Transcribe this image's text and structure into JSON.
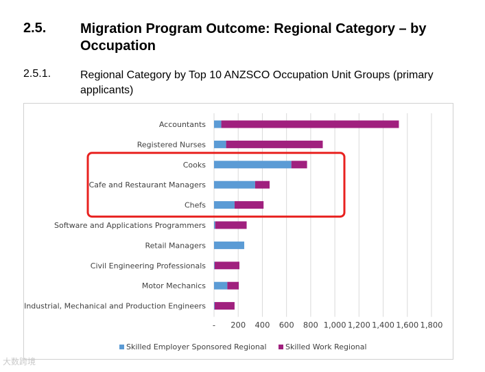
{
  "heading": {
    "number": "2.5.",
    "title": "Migration Program Outcome: Regional Category – by Occupation"
  },
  "subheading": {
    "number": "2.5.1.",
    "title": "Regional Category by Top 10 ANZSCO Occupation Unit Groups (primary applicants)"
  },
  "watermark": "大数跨境",
  "chart_data": {
    "type": "bar",
    "orientation": "horizontal",
    "stacked": true,
    "categories": [
      "Accountants",
      "Registered Nurses",
      "Cooks",
      "Cafe and Restaurant Managers",
      "Chefs",
      "Software and Applications Programmers",
      "Retail Managers",
      "Civil Engineering Professionals",
      "Motor Mechanics",
      "Industrial, Mechanical and Production Engineers"
    ],
    "series": [
      {
        "name": "Skilled Employer Sponsored Regional",
        "color": "#5b9bd5",
        "values": [
          60,
          100,
          640,
          340,
          170,
          10,
          250,
          5,
          110,
          5
        ]
      },
      {
        "name": "Skilled Work Regional",
        "color": "#a0207e",
        "values": [
          1470,
          800,
          130,
          120,
          240,
          260,
          0,
          205,
          95,
          165
        ]
      }
    ],
    "xlim": [
      0,
      1800
    ],
    "xticks": [
      "-",
      "200",
      "400",
      "600",
      "800",
      "1,000",
      "1,200",
      "1,400",
      "1,600",
      "1,800"
    ],
    "grid": true,
    "legend": "bottom",
    "highlight": {
      "categories": [
        "Cooks",
        "Cafe and Restaurant Managers",
        "Chefs"
      ],
      "color": "#e8211f"
    }
  }
}
